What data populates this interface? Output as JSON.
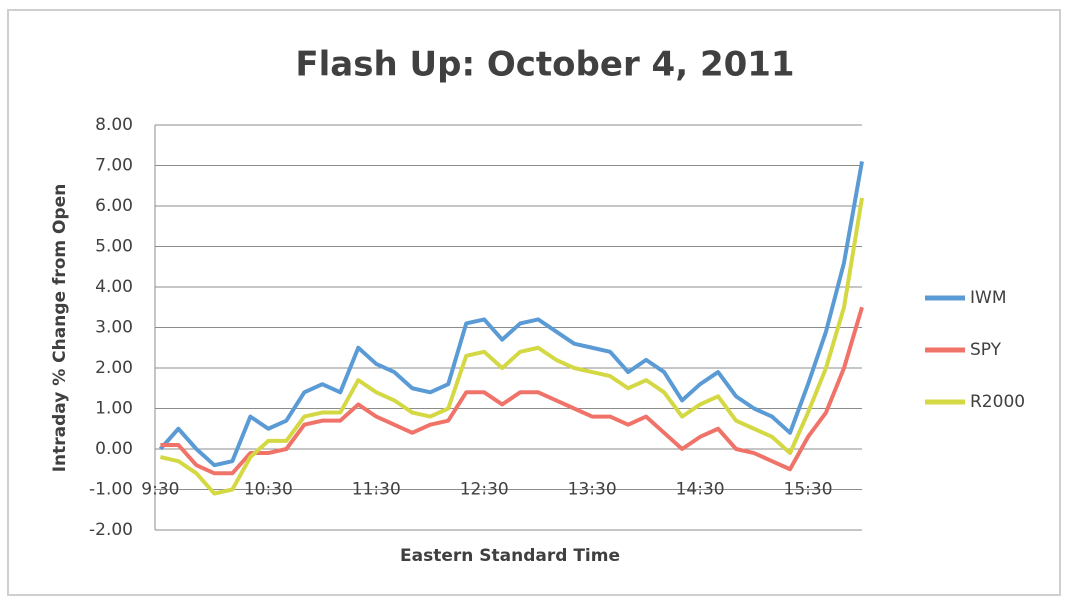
{
  "chart_data": {
    "type": "line",
    "title": "Flash Up:  October 4, 2011",
    "x_label": "Eastern Standard Time",
    "y_label": "Intraday % Change from Open",
    "x": [
      570,
      580,
      590,
      600,
      610,
      620,
      630,
      640,
      650,
      660,
      670,
      680,
      690,
      700,
      710,
      720,
      730,
      740,
      750,
      760,
      770,
      780,
      790,
      800,
      810,
      820,
      830,
      840,
      850,
      860,
      870,
      880,
      890,
      900,
      910,
      920,
      930,
      940,
      950,
      960
    ],
    "series": [
      {
        "name": "IWM",
        "color": "#5b9bd5",
        "values": [
          0,
          0.5,
          0.0,
          -0.4,
          -0.3,
          0.8,
          0.5,
          0.7,
          1.4,
          1.6,
          1.4,
          2.5,
          2.1,
          1.9,
          1.5,
          1.4,
          1.6,
          3.1,
          3.2,
          2.7,
          3.1,
          3.2,
          2.9,
          2.6,
          2.5,
          2.4,
          1.9,
          2.2,
          1.9,
          1.2,
          1.6,
          1.9,
          1.3,
          1.0,
          0.8,
          0.4,
          1.6,
          2.9,
          4.6,
          7.1
        ]
      },
      {
        "name": "SPY",
        "color": "#f0736a",
        "values": [
          0.1,
          0.1,
          -0.4,
          -0.6,
          -0.6,
          -0.1,
          -0.1,
          0.0,
          0.6,
          0.7,
          0.7,
          1.1,
          0.8,
          0.6,
          0.4,
          0.6,
          0.7,
          1.4,
          1.4,
          1.1,
          1.4,
          1.4,
          1.2,
          1.0,
          0.8,
          0.8,
          0.6,
          0.8,
          0.4,
          0.0,
          0.3,
          0.5,
          0.0,
          -0.1,
          -0.3,
          -0.5,
          0.3,
          0.9,
          2.0,
          3.5
        ]
      },
      {
        "name": "R2000",
        "color": "#d4d843",
        "values": [
          -0.2,
          -0.3,
          -0.6,
          -1.1,
          -1.0,
          -0.2,
          0.2,
          0.2,
          0.8,
          0.9,
          0.9,
          1.7,
          1.4,
          1.2,
          0.9,
          0.8,
          1.0,
          2.3,
          2.4,
          2.0,
          2.4,
          2.5,
          2.2,
          2.0,
          1.9,
          1.8,
          1.5,
          1.7,
          1.4,
          0.8,
          1.1,
          1.3,
          0.7,
          0.5,
          0.3,
          -0.1,
          0.9,
          2.0,
          3.5,
          6.2
        ]
      }
    ],
    "xlim": [
      567,
      960
    ],
    "xticks": [
      {
        "value": 570,
        "label": "9:30"
      },
      {
        "value": 630,
        "label": "10:30"
      },
      {
        "value": 690,
        "label": "11:30"
      },
      {
        "value": 750,
        "label": "12:30"
      },
      {
        "value": 810,
        "label": "13:30"
      },
      {
        "value": 870,
        "label": "14:30"
      },
      {
        "value": 930,
        "label": "15:30"
      }
    ],
    "ylim": [
      -2,
      8
    ],
    "yticks": [
      {
        "value": -2,
        "label": "-2.00"
      },
      {
        "value": -1,
        "label": "-1.00"
      },
      {
        "value": 0,
        "label": "0.00"
      },
      {
        "value": 1,
        "label": "1.00"
      },
      {
        "value": 2,
        "label": "2.00"
      },
      {
        "value": 3,
        "label": "3.00"
      },
      {
        "value": 4,
        "label": "4.00"
      },
      {
        "value": 5,
        "label": "5.00"
      },
      {
        "value": 6,
        "label": "6.00"
      },
      {
        "value": 7,
        "label": "7.00"
      },
      {
        "value": 8,
        "label": "8.00"
      }
    ],
    "x_axis_at": -1,
    "grid": true,
    "legend": "right"
  }
}
